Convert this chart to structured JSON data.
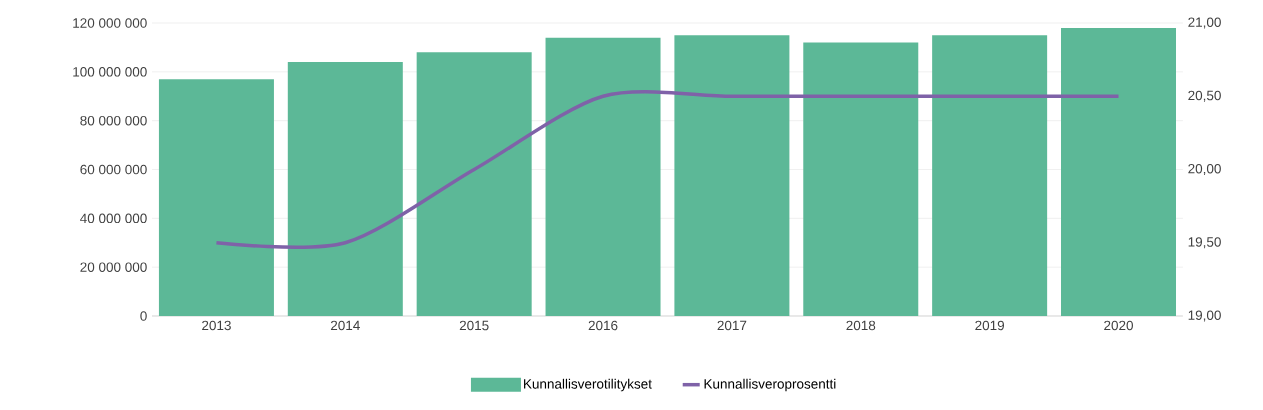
{
  "chart_data": {
    "type": "bar",
    "categories": [
      "2013",
      "2014",
      "2015",
      "2016",
      "2017",
      "2018",
      "2019",
      "2020"
    ],
    "series": [
      {
        "name": "Kunnallisverotilitykset",
        "color": "#5cb897",
        "values": [
          97000000,
          104000000,
          108000000,
          114000000,
          115000000,
          112000000,
          115000000,
          118000000
        ]
      },
      {
        "name": "Kunnallisveroprosentti",
        "type": "line",
        "axis": "y2",
        "color": "#7f62a8",
        "values": [
          19.5,
          19.5,
          20.0,
          20.5,
          20.5,
          20.5,
          20.5,
          20.5
        ]
      }
    ],
    "ylim": [
      0,
      120000000
    ],
    "yticks": [
      {
        "value": 0,
        "label": "0"
      },
      {
        "value": 20000000,
        "label": "20 000 000"
      },
      {
        "value": 40000000,
        "label": "40 000 000"
      },
      {
        "value": 60000000,
        "label": "60 000 000"
      },
      {
        "value": 80000000,
        "label": "80 000 000"
      },
      {
        "value": 100000000,
        "label": "100 000 000"
      },
      {
        "value": 120000000,
        "label": "120 000 000"
      }
    ],
    "y2lim": [
      19,
      21
    ],
    "y2ticks": [
      {
        "value": 19,
        "label": "19,00"
      },
      {
        "value": 19.5,
        "label": "19,50"
      },
      {
        "value": 20,
        "label": "20,00"
      },
      {
        "value": 20.5,
        "label": "20,50"
      },
      {
        "value": 21,
        "label": "21,00"
      }
    ],
    "grid": "y",
    "legend": "bottom",
    "marker": "none"
  }
}
